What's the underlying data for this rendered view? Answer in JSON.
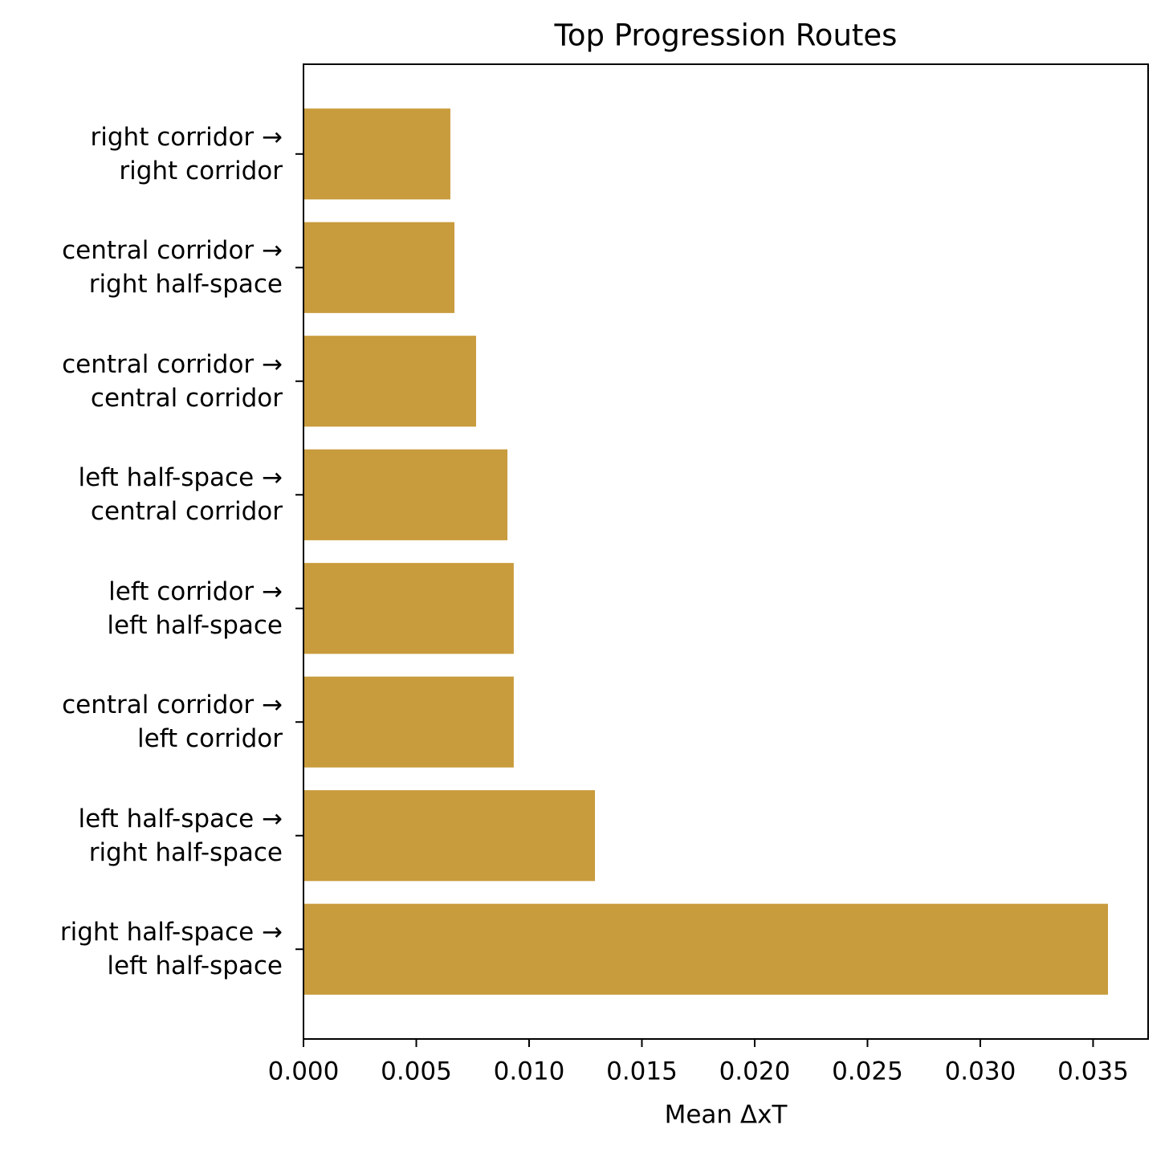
{
  "chart_data": {
    "type": "barh",
    "title": "Top Progression Routes",
    "x_label": "Mean ΔxT",
    "categories": [
      "right half-space →\nleft half-space",
      "left half-space →\nright half-space",
      "central corridor →\nleft corridor",
      "left corridor →\nleft half-space",
      "left half-space →\ncentral corridor",
      "central corridor →\ncentral corridor",
      "central corridor →\nright half-space",
      "right corridor →\nright corridor"
    ],
    "values": [
      0.03566,
      0.01292,
      0.00932,
      0.00932,
      0.00904,
      0.00765,
      0.00669,
      0.00651
    ],
    "color": "#c89b3c",
    "xlim": [
      0,
      0.03744
    ],
    "xticks": [
      {
        "value": 0,
        "label": "0.000"
      },
      {
        "value": 0.005,
        "label": "0.005"
      },
      {
        "value": 0.01,
        "label": "0.010"
      },
      {
        "value": 0.015,
        "label": "0.015"
      },
      {
        "value": 0.02,
        "label": "0.020"
      },
      {
        "value": 0.025,
        "label": "0.025"
      },
      {
        "value": 0.03,
        "label": "0.030"
      },
      {
        "value": 0.035,
        "label": "0.035"
      }
    ],
    "grid": false
  }
}
